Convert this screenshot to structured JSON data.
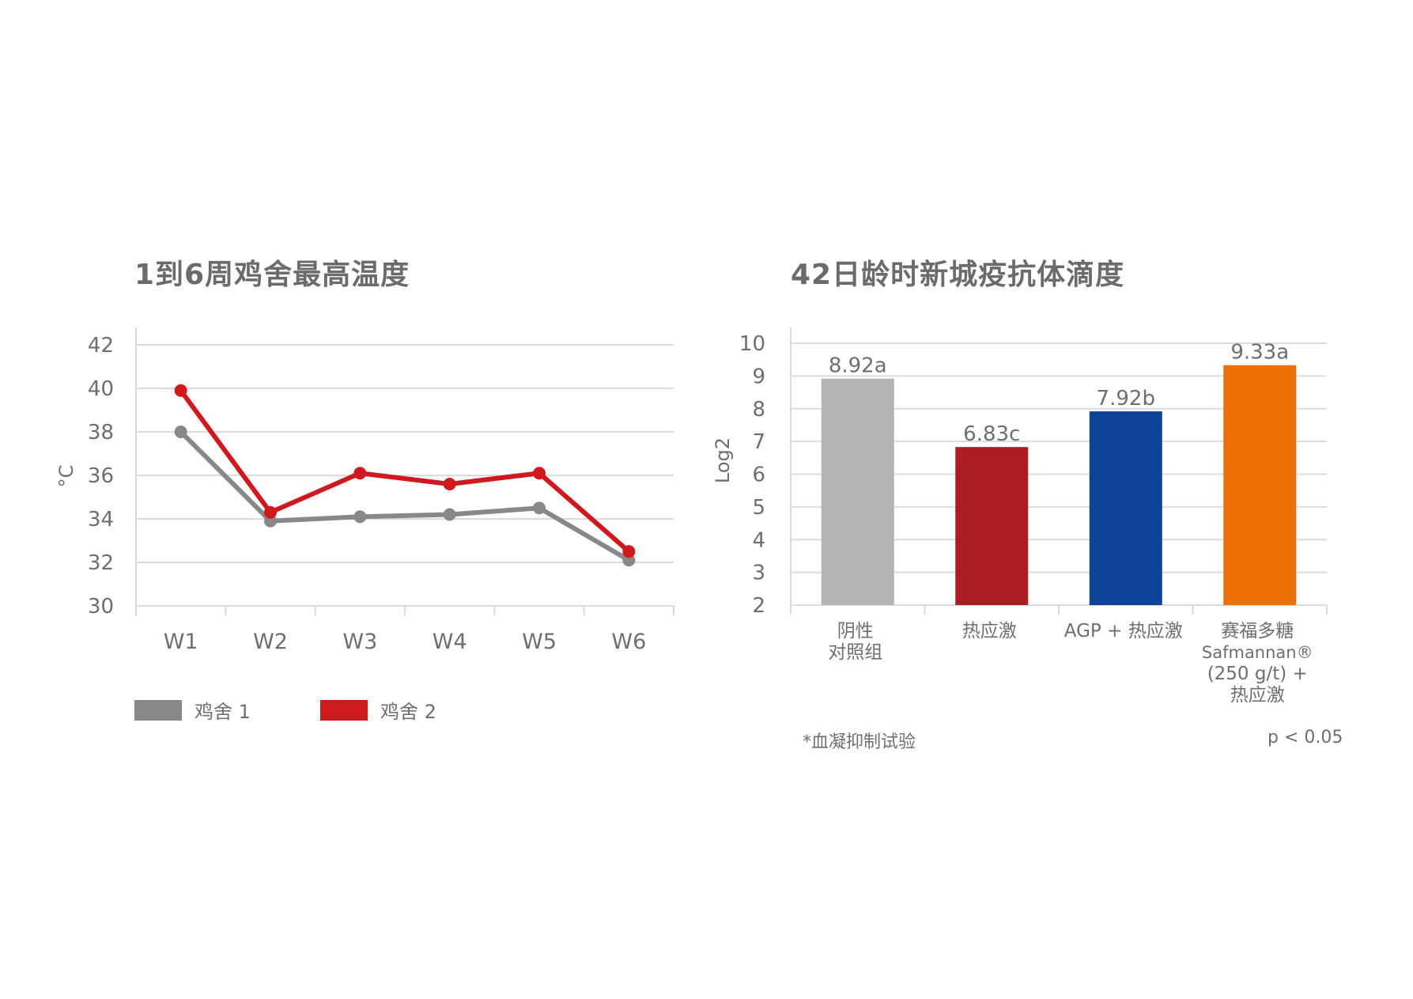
{
  "chart_data": [
    {
      "type": "line",
      "title": "1到6周鸡舍最高温度",
      "ylabel": "°C",
      "xlabel": "",
      "categories": [
        "W1",
        "W2",
        "W3",
        "W4",
        "W5",
        "W6"
      ],
      "ylim": [
        30,
        42
      ],
      "yticks": [
        30,
        32,
        34,
        36,
        38,
        40,
        42
      ],
      "grid": true,
      "legend_position": "bottom-left",
      "series": [
        {
          "name": "鸡舍 1",
          "color": "#888888",
          "values": [
            38.0,
            33.9,
            34.1,
            34.2,
            34.5,
            32.1
          ]
        },
        {
          "name": "鸡舍 2",
          "color": "#d0191f",
          "values": [
            39.9,
            34.3,
            36.1,
            35.6,
            36.1,
            32.5
          ]
        }
      ]
    },
    {
      "type": "bar",
      "title": "42日龄时新城疫抗体滴度",
      "ylabel": "Log2",
      "xlabel": "",
      "ylim": [
        2,
        10
      ],
      "yticks": [
        2,
        3,
        4,
        5,
        6,
        7,
        8,
        9,
        10
      ],
      "grid": true,
      "categories": [
        [
          "阴性",
          "对照组"
        ],
        [
          "热应激"
        ],
        [
          "AGP + 热应激"
        ],
        [
          "赛福多糖",
          "Safmannan®",
          "(250 g/t) +",
          "热应激"
        ]
      ],
      "values": [
        8.92,
        6.83,
        7.92,
        9.33
      ],
      "data_labels": [
        "8.92a",
        "6.83c",
        "7.92b",
        "9.33a"
      ],
      "colors": [
        "#b3b3b3",
        "#aa1e23",
        "#0c4396",
        "#ec6f07"
      ],
      "footnote": "*血凝抑制试验",
      "significance": "p < 0.05"
    }
  ]
}
